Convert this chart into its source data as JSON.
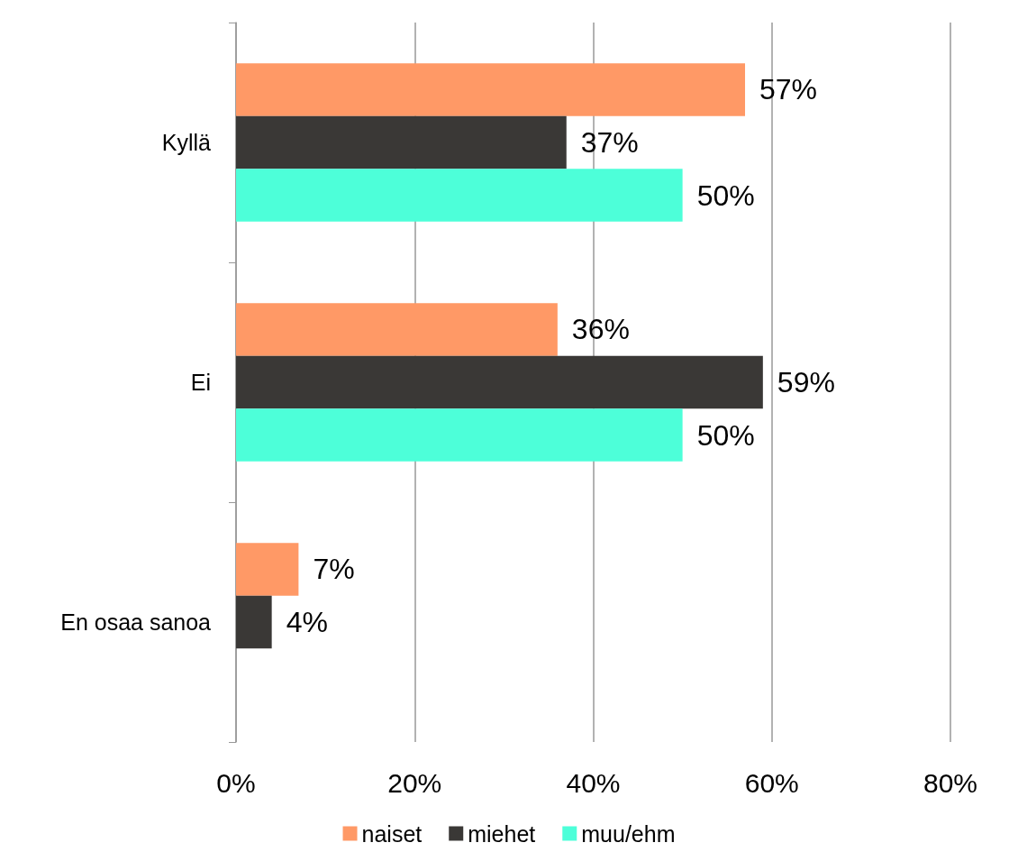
{
  "chart_data": {
    "type": "bar",
    "orientation": "horizontal",
    "categories": [
      "Kyllä",
      "Ei",
      "En osaa sanoa"
    ],
    "series": [
      {
        "name": "naiset",
        "color": "#ff9966",
        "values": [
          57,
          36,
          7
        ],
        "value_labels": [
          "57%",
          "36%",
          "7%"
        ]
      },
      {
        "name": "miehet",
        "color": "#3a3836",
        "values": [
          37,
          59,
          4
        ],
        "value_labels": [
          "37%",
          "59%",
          "4%"
        ]
      },
      {
        "name": "muu/ehm",
        "color": "#4dffd9",
        "values": [
          50,
          50,
          null
        ],
        "value_labels": [
          "50%",
          "50%",
          null
        ]
      }
    ],
    "xlim": [
      0,
      80
    ],
    "xticks": [
      {
        "value": 0,
        "label": "0%"
      },
      {
        "value": 20,
        "label": "20%"
      },
      {
        "value": 40,
        "label": "40%"
      },
      {
        "value": 60,
        "label": "60%"
      },
      {
        "value": 80,
        "label": "80%"
      }
    ],
    "grid": "x",
    "legend": "bottom"
  }
}
